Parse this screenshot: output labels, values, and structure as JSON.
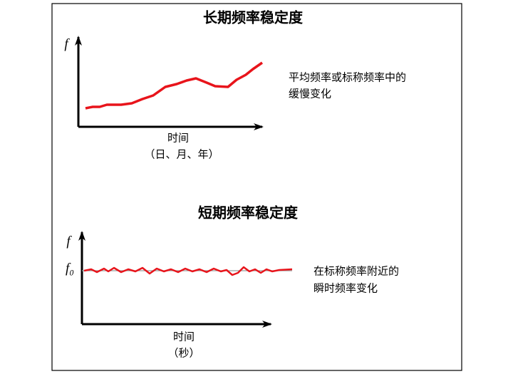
{
  "long_term": {
    "title": "长期频率稳定度",
    "y_label": "f",
    "x_label": "时间",
    "x_unit": "（日、月、年）",
    "note": [
      "平均频率或标称频率中的",
      "缓慢变化"
    ]
  },
  "short_term": {
    "title": "短期频率稳定度",
    "y_label": "f",
    "nominal_label": "f₀",
    "x_label": "时间",
    "x_unit": "（秒）",
    "note": [
      "在标称频率附近的",
      "瞬时频率变化"
    ]
  }
}
